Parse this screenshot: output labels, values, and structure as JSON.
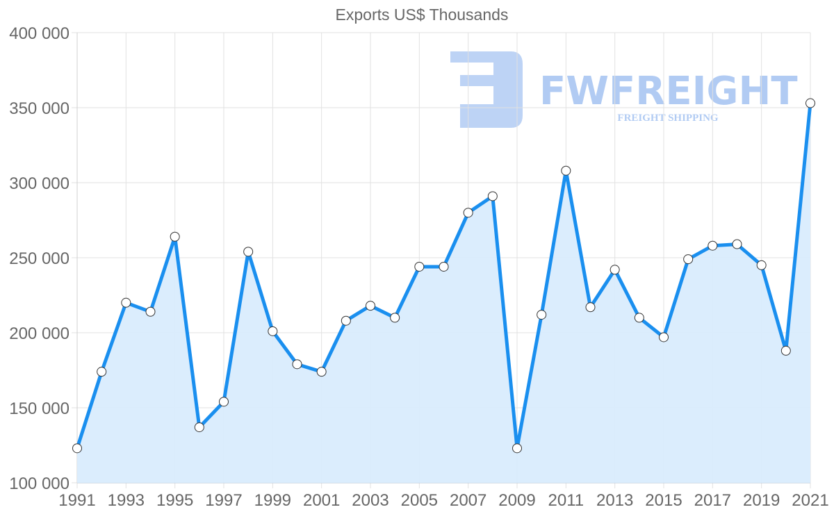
{
  "chart_data": {
    "type": "line",
    "title": "Exports US$ Thousands",
    "xlabel": "",
    "ylabel": "",
    "ylim": [
      100000,
      400000
    ],
    "y_ticks": [
      "100 000",
      "150 000",
      "200 000",
      "250 000",
      "300 000",
      "350 000",
      "400 000"
    ],
    "y_tick_values": [
      100000,
      150000,
      200000,
      250000,
      300000,
      350000,
      400000
    ],
    "x_tick_labels": [
      "1991",
      "1993",
      "1995",
      "1997",
      "1999",
      "2001",
      "2003",
      "2005",
      "2007",
      "2009",
      "2011",
      "2013",
      "2015",
      "2017",
      "2019",
      "2021"
    ],
    "grid": true,
    "legend": null,
    "fill": "area under line",
    "x": [
      1991,
      1992,
      1993,
      1994,
      1995,
      1996,
      1997,
      1998,
      1999,
      2000,
      2001,
      2002,
      2003,
      2004,
      2005,
      2006,
      2007,
      2008,
      2009,
      2010,
      2011,
      2012,
      2013,
      2014,
      2015,
      2016,
      2017,
      2018,
      2019,
      2020,
      2021
    ],
    "series": [
      {
        "name": "Exports US$ Thousands",
        "values": [
          123000,
          174000,
          220000,
          214000,
          264000,
          137000,
          154000,
          254000,
          201000,
          179000,
          174000,
          208000,
          218000,
          210000,
          244000,
          244000,
          280000,
          291000,
          123000,
          212000,
          308000,
          217000,
          242000,
          210000,
          197000,
          249000,
          258000,
          259000,
          245000,
          188000,
          353000
        ]
      }
    ],
    "colors": {
      "line": "#1a8fef",
      "fill": "#d9ecfd",
      "point_fill": "#ffffff",
      "point_stroke": "#333333"
    }
  },
  "watermark": {
    "brand": "FWFREIGHT",
    "tagline": "FREIGHT SHIPPING",
    "color": "#a9c6f2"
  }
}
